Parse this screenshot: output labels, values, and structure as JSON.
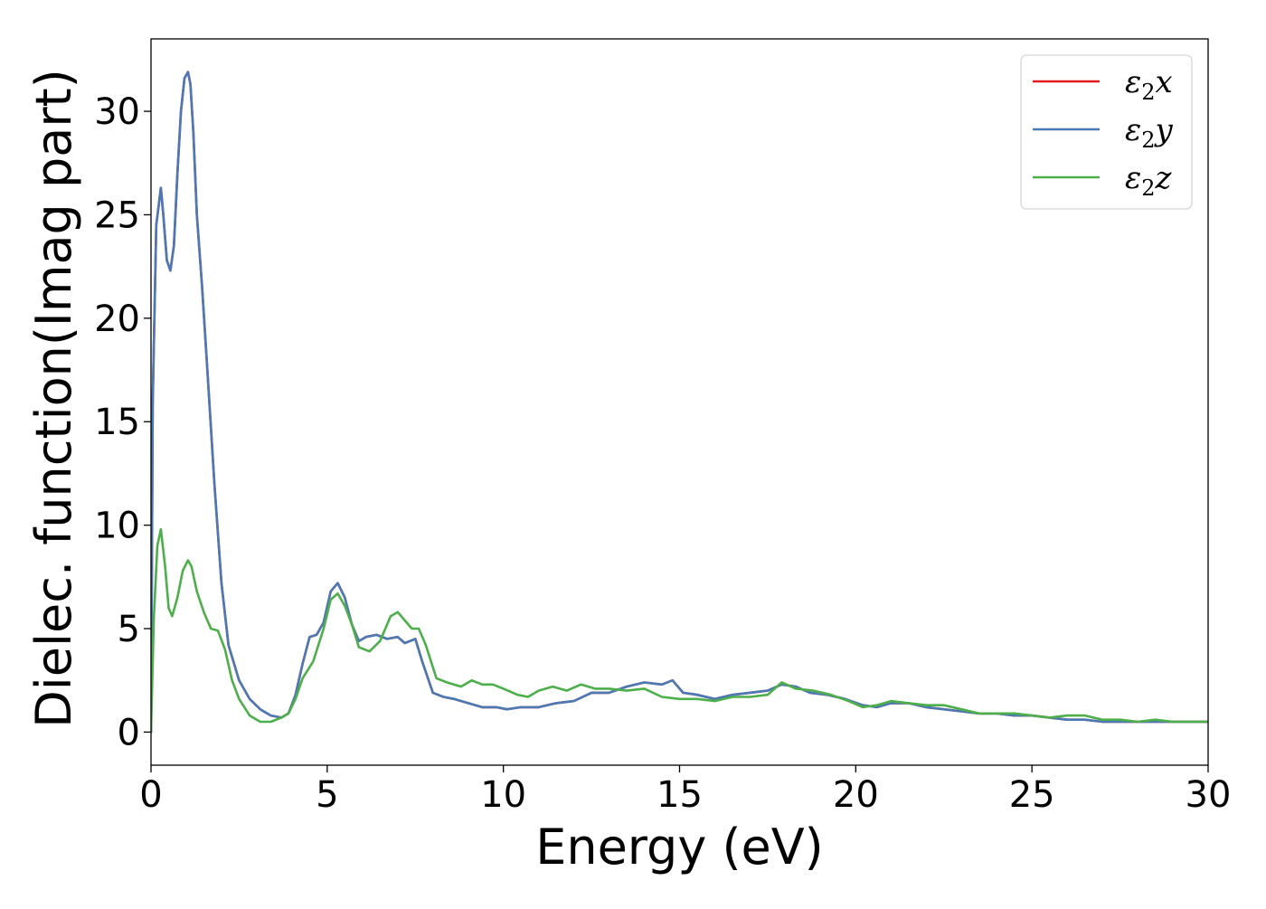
{
  "chart_data": {
    "type": "line",
    "title": "",
    "xlabel": "Energy (eV)",
    "ylabel": "Dielec. function(Imag part)",
    "xlim": [
      0,
      30
    ],
    "ylim": [
      -1.6,
      33.5
    ],
    "xticks": [
      0,
      5,
      10,
      15,
      20,
      25,
      30
    ],
    "xtick_labels": [
      "0",
      "5",
      "10",
      "15",
      "20",
      "25",
      "30"
    ],
    "yticks": [
      0,
      5,
      10,
      15,
      20,
      25,
      30
    ],
    "ytick_labels": [
      "0",
      "5",
      "10",
      "15",
      "20",
      "25",
      "30"
    ],
    "grid": false,
    "legend_position": "top-right",
    "legend": [
      {
        "label_main": "ε",
        "label_sub": "2",
        "label_suffix": "x"
      },
      {
        "label_main": "ε",
        "label_sub": "2",
        "label_suffix": "y"
      },
      {
        "label_main": "ε",
        "label_sub": "2",
        "label_suffix": "z"
      }
    ],
    "series": [
      {
        "name": "ε2x",
        "color": "#e41a1c",
        "x": [
          0,
          0.05,
          0.15,
          0.28,
          0.35,
          0.45,
          0.55,
          0.65,
          0.75,
          0.85,
          0.95,
          1.05,
          1.12,
          1.2,
          1.3,
          1.45,
          1.6,
          1.8,
          2.0,
          2.2,
          2.5,
          2.8,
          3.1,
          3.4,
          3.7,
          3.9,
          4.1,
          4.3,
          4.5,
          4.7,
          4.9,
          5.1,
          5.3,
          5.5,
          5.7,
          5.9,
          6.1,
          6.4,
          6.7,
          7.0,
          7.2,
          7.5,
          7.7,
          8.0,
          8.3,
          8.6,
          9.0,
          9.4,
          9.8,
          10.1,
          10.5,
          11.0,
          11.5,
          12.0,
          12.5,
          13.0,
          13.5,
          14.0,
          14.5,
          14.8,
          15.1,
          15.5,
          16.0,
          16.5,
          17.0,
          17.5,
          17.9,
          18.3,
          18.7,
          19.2,
          19.7,
          20.2,
          20.6,
          21.0,
          21.5,
          22.0,
          22.5,
          23.0,
          23.5,
          24.0,
          24.5,
          25.0,
          25.5,
          26.0,
          26.5,
          27.0,
          27.5,
          28.0,
          28.5,
          29.0,
          29.5,
          30.0
        ],
        "y": [
          0,
          16.0,
          24.5,
          26.3,
          25.0,
          22.8,
          22.3,
          23.5,
          27.0,
          30.0,
          31.6,
          31.9,
          31.3,
          29.0,
          25.0,
          21.5,
          17.5,
          12.0,
          7.2,
          4.2,
          2.5,
          1.6,
          1.1,
          0.8,
          0.7,
          0.9,
          1.8,
          3.3,
          4.6,
          4.7,
          5.3,
          6.8,
          7.2,
          6.5,
          5.2,
          4.4,
          4.6,
          4.7,
          4.5,
          4.6,
          4.3,
          4.5,
          3.4,
          1.9,
          1.7,
          1.6,
          1.4,
          1.2,
          1.2,
          1.1,
          1.2,
          1.2,
          1.4,
          1.5,
          1.9,
          1.9,
          2.2,
          2.4,
          2.3,
          2.5,
          1.9,
          1.8,
          1.6,
          1.8,
          1.9,
          2.0,
          2.3,
          2.2,
          1.9,
          1.8,
          1.6,
          1.3,
          1.2,
          1.4,
          1.4,
          1.2,
          1.1,
          1.0,
          0.9,
          0.9,
          0.8,
          0.8,
          0.7,
          0.6,
          0.6,
          0.5,
          0.5,
          0.5,
          0.5,
          0.5,
          0.5,
          0.5
        ]
      },
      {
        "name": "ε2y",
        "color": "#4a7ab5",
        "x": [
          0,
          0.05,
          0.15,
          0.28,
          0.35,
          0.45,
          0.55,
          0.65,
          0.75,
          0.85,
          0.95,
          1.05,
          1.12,
          1.2,
          1.3,
          1.45,
          1.6,
          1.8,
          2.0,
          2.2,
          2.5,
          2.8,
          3.1,
          3.4,
          3.7,
          3.9,
          4.1,
          4.3,
          4.5,
          4.7,
          4.9,
          5.1,
          5.3,
          5.5,
          5.7,
          5.9,
          6.1,
          6.4,
          6.7,
          7.0,
          7.2,
          7.5,
          7.7,
          8.0,
          8.3,
          8.6,
          9.0,
          9.4,
          9.8,
          10.1,
          10.5,
          11.0,
          11.5,
          12.0,
          12.5,
          13.0,
          13.5,
          14.0,
          14.5,
          14.8,
          15.1,
          15.5,
          16.0,
          16.5,
          17.0,
          17.5,
          17.9,
          18.3,
          18.7,
          19.2,
          19.7,
          20.2,
          20.6,
          21.0,
          21.5,
          22.0,
          22.5,
          23.0,
          23.5,
          24.0,
          24.5,
          25.0,
          25.5,
          26.0,
          26.5,
          27.0,
          27.5,
          28.0,
          28.5,
          29.0,
          29.5,
          30.0
        ],
        "y": [
          0,
          16.0,
          24.5,
          26.3,
          25.0,
          22.8,
          22.3,
          23.5,
          27.0,
          30.0,
          31.6,
          31.9,
          31.3,
          29.0,
          25.0,
          21.5,
          17.5,
          12.0,
          7.2,
          4.2,
          2.5,
          1.6,
          1.1,
          0.8,
          0.7,
          0.9,
          1.8,
          3.3,
          4.6,
          4.7,
          5.3,
          6.8,
          7.2,
          6.5,
          5.2,
          4.4,
          4.6,
          4.7,
          4.5,
          4.6,
          4.3,
          4.5,
          3.4,
          1.9,
          1.7,
          1.6,
          1.4,
          1.2,
          1.2,
          1.1,
          1.2,
          1.2,
          1.4,
          1.5,
          1.9,
          1.9,
          2.2,
          2.4,
          2.3,
          2.5,
          1.9,
          1.8,
          1.6,
          1.8,
          1.9,
          2.0,
          2.3,
          2.2,
          1.9,
          1.8,
          1.6,
          1.3,
          1.2,
          1.4,
          1.4,
          1.2,
          1.1,
          1.0,
          0.9,
          0.9,
          0.8,
          0.8,
          0.7,
          0.6,
          0.6,
          0.5,
          0.5,
          0.5,
          0.5,
          0.5,
          0.5,
          0.5
        ]
      },
      {
        "name": "ε2z",
        "color": "#4daf4a",
        "x": [
          0,
          0.08,
          0.18,
          0.28,
          0.4,
          0.5,
          0.6,
          0.75,
          0.9,
          1.05,
          1.15,
          1.3,
          1.5,
          1.7,
          1.9,
          2.1,
          2.3,
          2.5,
          2.8,
          3.1,
          3.4,
          3.7,
          3.9,
          4.1,
          4.3,
          4.6,
          4.9,
          5.1,
          5.3,
          5.5,
          5.7,
          5.9,
          6.2,
          6.5,
          6.8,
          7.0,
          7.2,
          7.4,
          7.6,
          7.8,
          8.1,
          8.4,
          8.8,
          9.1,
          9.4,
          9.7,
          10.0,
          10.4,
          10.7,
          11.0,
          11.4,
          11.8,
          12.2,
          12.6,
          13.0,
          13.5,
          14.0,
          14.5,
          15.0,
          15.5,
          16.0,
          16.5,
          17.0,
          17.5,
          17.9,
          18.3,
          18.8,
          19.3,
          19.8,
          20.2,
          20.6,
          21.0,
          21.5,
          22.0,
          22.5,
          23.0,
          23.5,
          24.0,
          24.5,
          25.0,
          25.5,
          26.0,
          26.5,
          27.0,
          27.5,
          28.0,
          28.5,
          29.0,
          29.5,
          30.0
        ],
        "y": [
          0,
          5.5,
          9.0,
          9.8,
          8.0,
          6.0,
          5.6,
          6.5,
          7.8,
          8.3,
          8.0,
          6.8,
          5.8,
          5.0,
          4.9,
          4.0,
          2.5,
          1.6,
          0.8,
          0.5,
          0.5,
          0.7,
          0.9,
          1.6,
          2.6,
          3.4,
          5.0,
          6.4,
          6.7,
          6.1,
          5.2,
          4.1,
          3.9,
          4.4,
          5.6,
          5.8,
          5.4,
          5.0,
          5.0,
          4.2,
          2.6,
          2.4,
          2.2,
          2.5,
          2.3,
          2.3,
          2.1,
          1.8,
          1.7,
          2.0,
          2.2,
          2.0,
          2.3,
          2.1,
          2.1,
          2.0,
          2.1,
          1.7,
          1.6,
          1.6,
          1.5,
          1.7,
          1.7,
          1.8,
          2.4,
          2.1,
          2.0,
          1.8,
          1.5,
          1.2,
          1.3,
          1.5,
          1.4,
          1.3,
          1.3,
          1.1,
          0.9,
          0.9,
          0.9,
          0.8,
          0.7,
          0.8,
          0.8,
          0.6,
          0.6,
          0.5,
          0.6,
          0.5,
          0.5,
          0.5
        ]
      }
    ]
  }
}
